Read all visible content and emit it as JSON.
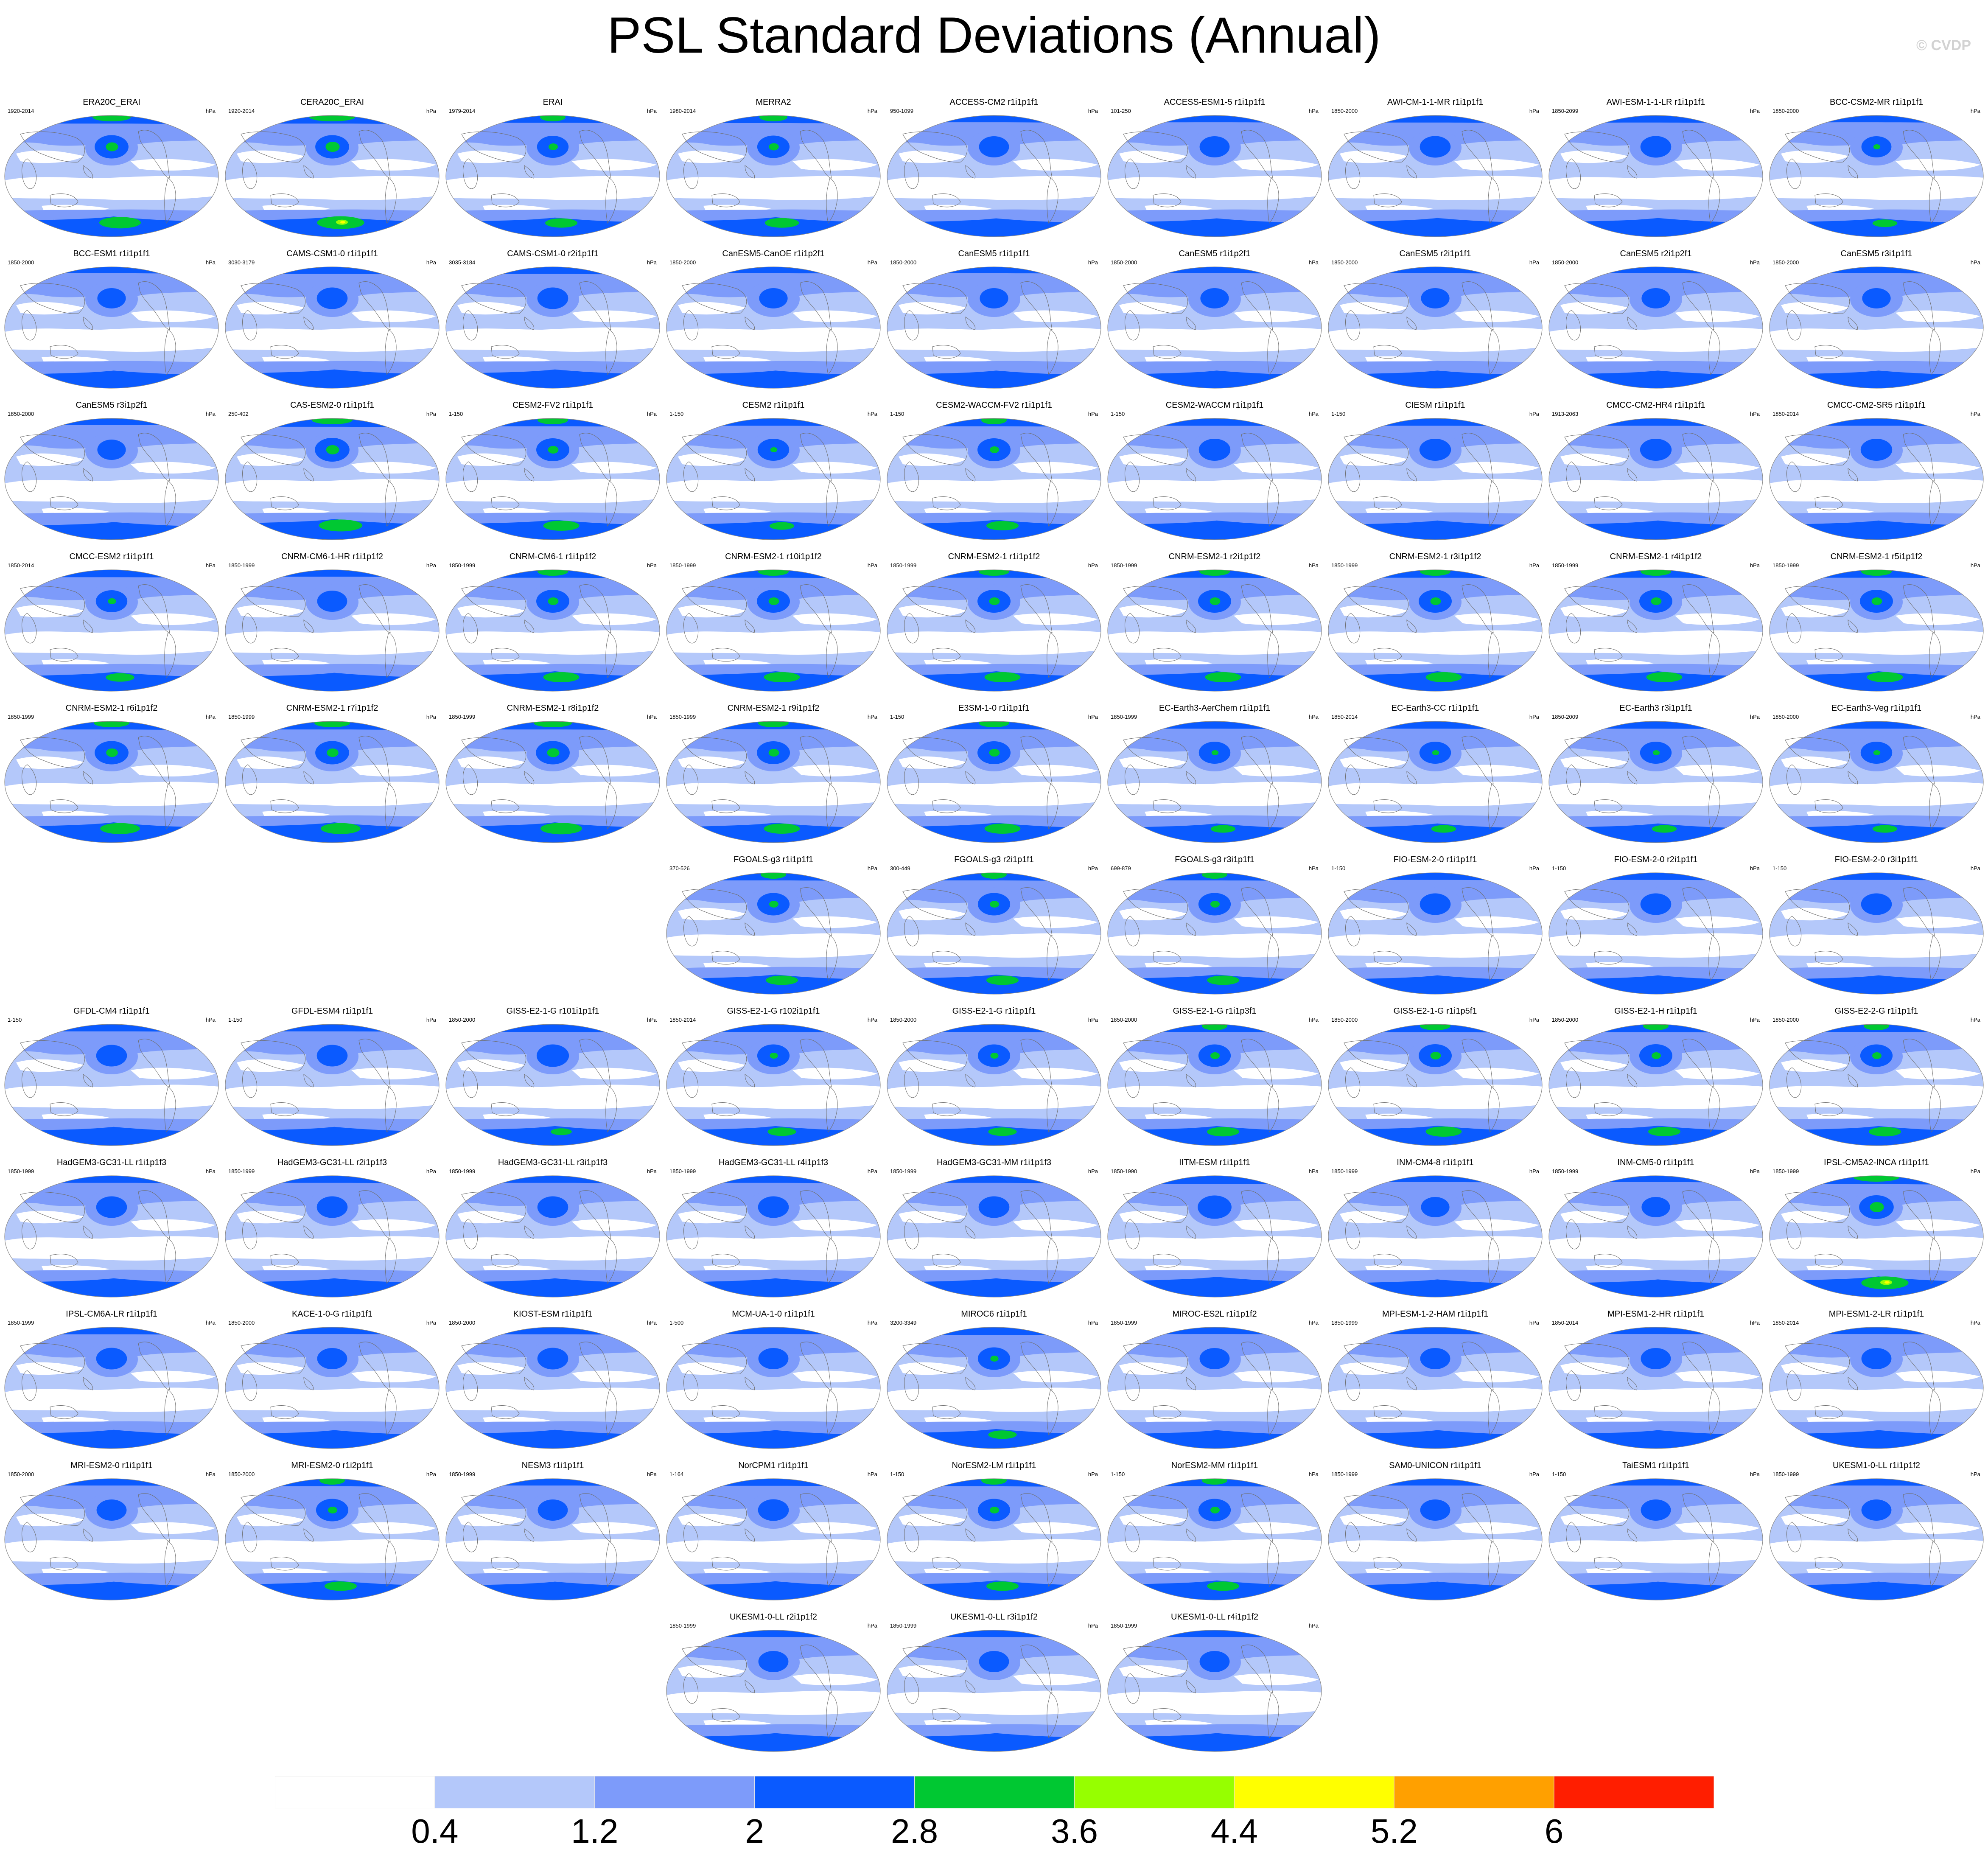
{
  "chart_data": {
    "type": "map-panels",
    "title": "PSL Standard Deviations (Annual)",
    "copyright": "© CVDP",
    "units": "hPa",
    "colorbar": {
      "levels": [
        "0.4",
        "1.2",
        "2",
        "2.8",
        "3.6",
        "4.4",
        "5.2",
        "6"
      ],
      "colors": [
        "#ffffff",
        "#b4c8fa",
        "#7d9bfa",
        "#0a5aff",
        "#00c832",
        "#96ff00",
        "#ffff00",
        "#ffa000",
        "#ff1e00"
      ]
    },
    "panels": [
      {
        "name": "ERA20C_ERAI",
        "years": "1920-2014",
        "row": 0,
        "col": 0,
        "s": 0.55,
        "g": 0.75
      },
      {
        "name": "CERA20C_ERAI",
        "years": "1920-2014",
        "row": 0,
        "col": 1,
        "s": 0.55,
        "g": 0.9
      },
      {
        "name": "ERAI",
        "years": "1979-2014",
        "row": 0,
        "col": 2,
        "s": 0.4,
        "g": 0.5
      },
      {
        "name": "MERRA2",
        "years": "1980-2014",
        "row": 0,
        "col": 3,
        "s": 0.45,
        "g": 0.55
      },
      {
        "name": "ACCESS-CM2 r1i1p1f1",
        "years": "950-1099",
        "row": 0,
        "col": 4,
        "s": 0.3,
        "g": 0
      },
      {
        "name": "ACCESS-ESM1-5 r1i1p1f1",
        "years": "101-250",
        "row": 0,
        "col": 5,
        "s": 0.3,
        "g": 0
      },
      {
        "name": "AWI-CM-1-1-MR r1i1p1f1",
        "years": "1850-2000",
        "row": 0,
        "col": 6,
        "s": 0.35,
        "g": 0
      },
      {
        "name": "AWI-ESM-1-1-LR r1i1p1f1",
        "years": "1850-2099",
        "row": 0,
        "col": 7,
        "s": 0.35,
        "g": 0
      },
      {
        "name": "BCC-CSM2-MR r1i1p1f1",
        "years": "1850-2000",
        "row": 0,
        "col": 8,
        "s": 0.3,
        "g": 0.3
      },
      {
        "name": "BCC-ESM1 r1i1p1f1",
        "years": "1850-2000",
        "row": 1,
        "col": 0,
        "s": 0.2,
        "g": 0
      },
      {
        "name": "CAMS-CSM1-0 r1i1p1f1",
        "years": "3030-3179",
        "row": 1,
        "col": 1,
        "s": 0.35,
        "g": 0
      },
      {
        "name": "CAMS-CSM1-0 r2i1p1f1",
        "years": "3035-3184",
        "row": 1,
        "col": 2,
        "s": 0.35,
        "g": 0
      },
      {
        "name": "CanESM5-CanOE r1i1p2f1",
        "years": "1850-2000",
        "row": 1,
        "col": 3,
        "s": 0.2,
        "g": 0
      },
      {
        "name": "CanESM5 r1i1p1f1",
        "years": "1850-2000",
        "row": 1,
        "col": 4,
        "s": 0.2,
        "g": 0
      },
      {
        "name": "CanESM5 r1i1p2f1",
        "years": "1850-2000",
        "row": 1,
        "col": 5,
        "s": 0.2,
        "g": 0
      },
      {
        "name": "CanESM5 r2i1p1f1",
        "years": "1850-2000",
        "row": 1,
        "col": 6,
        "s": 0.2,
        "g": 0
      },
      {
        "name": "CanESM5 r2i1p2f1",
        "years": "1850-2000",
        "row": 1,
        "col": 7,
        "s": 0.2,
        "g": 0
      },
      {
        "name": "CanESM5 r3i1p1f1",
        "years": "1850-2000",
        "row": 1,
        "col": 8,
        "s": 0.2,
        "g": 0
      },
      {
        "name": "CanESM5 r3i1p2f1",
        "years": "1850-2000",
        "row": 2,
        "col": 0,
        "s": 0.2,
        "g": 0
      },
      {
        "name": "CAS-ESM2-0 r1i1p1f1",
        "years": "250-402",
        "row": 2,
        "col": 1,
        "s": 0.6,
        "g": 0.8
      },
      {
        "name": "CESM2-FV2 r1i1p1f1",
        "years": "1-150",
        "row": 2,
        "col": 2,
        "s": 0.5,
        "g": 0.6
      },
      {
        "name": "CESM2 r1i1p1f1",
        "years": "1-150",
        "row": 2,
        "col": 3,
        "s": 0.4,
        "g": 0.3
      },
      {
        "name": "CESM2-WACCM-FV2 r1i1p1f1",
        "years": "1-150",
        "row": 2,
        "col": 4,
        "s": 0.5,
        "g": 0.5
      },
      {
        "name": "CESM2-WACCM r1i1p1f1",
        "years": "1-150",
        "row": 2,
        "col": 5,
        "s": 0.4,
        "g": 0
      },
      {
        "name": "CIESM r1i1p1f1",
        "years": "1-150",
        "row": 2,
        "col": 6,
        "s": 0.4,
        "g": 0
      },
      {
        "name": "CMCC-CM2-HR4 r1i1p1f1",
        "years": "1913-2063",
        "row": 2,
        "col": 7,
        "s": 0.4,
        "g": 0
      },
      {
        "name": "CMCC-CM2-SR5 r1i1p1f1",
        "years": "1850-2014",
        "row": 2,
        "col": 8,
        "s": 0.4,
        "g": 0
      },
      {
        "name": "CMCC-ESM2 r1i1p1f1",
        "years": "1850-2014",
        "row": 3,
        "col": 0,
        "s": 0.4,
        "g": 0.4
      },
      {
        "name": "CNRM-CM6-1-HR r1i1p1f2",
        "years": "1850-1999",
        "row": 3,
        "col": 1,
        "s": 0.3,
        "g": 0
      },
      {
        "name": "CNRM-CM6-1 r1i1p1f2",
        "years": "1850-1999",
        "row": 3,
        "col": 2,
        "s": 0.5,
        "g": 0.6
      },
      {
        "name": "CNRM-ESM2-1 r10i1p1f2",
        "years": "1850-1999",
        "row": 3,
        "col": 3,
        "s": 0.5,
        "g": 0.6
      },
      {
        "name": "CNRM-ESM2-1 r1i1p1f2",
        "years": "1850-1999",
        "row": 3,
        "col": 4,
        "s": 0.5,
        "g": 0.6
      },
      {
        "name": "CNRM-ESM2-1 r2i1p1f2",
        "years": "1850-1999",
        "row": 3,
        "col": 5,
        "s": 0.5,
        "g": 0.6
      },
      {
        "name": "CNRM-ESM2-1 r3i1p1f2",
        "years": "1850-1999",
        "row": 3,
        "col": 6,
        "s": 0.5,
        "g": 0.6
      },
      {
        "name": "CNRM-ESM2-1 r4i1p1f2",
        "years": "1850-1999",
        "row": 3,
        "col": 7,
        "s": 0.5,
        "g": 0.6
      },
      {
        "name": "CNRM-ESM2-1 r5i1p1f2",
        "years": "1850-1999",
        "row": 3,
        "col": 8,
        "s": 0.5,
        "g": 0.6
      },
      {
        "name": "CNRM-ESM2-1 r6i1p1f2",
        "years": "1850-1999",
        "row": 4,
        "col": 0,
        "s": 0.55,
        "g": 0.7
      },
      {
        "name": "CNRM-ESM2-1 r7i1p1f2",
        "years": "1850-1999",
        "row": 4,
        "col": 1,
        "s": 0.55,
        "g": 0.7
      },
      {
        "name": "CNRM-ESM2-1 r8i1p1f2",
        "years": "1850-1999",
        "row": 4,
        "col": 2,
        "s": 0.55,
        "g": 0.75
      },
      {
        "name": "CNRM-ESM2-1 r9i1p1f2",
        "years": "1850-1999",
        "row": 4,
        "col": 3,
        "s": 0.5,
        "g": 0.6
      },
      {
        "name": "E3SM-1-0 r1i1p1f1",
        "years": "1-150",
        "row": 4,
        "col": 4,
        "s": 0.5,
        "g": 0.6
      },
      {
        "name": "EC-Earth3-AerChem r1i1p1f1",
        "years": "1850-1999",
        "row": 4,
        "col": 5,
        "s": 0.4,
        "g": 0.3
      },
      {
        "name": "EC-Earth3-CC r1i1p1f1",
        "years": "1850-2014",
        "row": 4,
        "col": 6,
        "s": 0.4,
        "g": 0.3
      },
      {
        "name": "EC-Earth3 r3i1p1f1",
        "years": "1850-2009",
        "row": 4,
        "col": 7,
        "s": 0.4,
        "g": 0.3
      },
      {
        "name": "EC-Earth3-Veg r1i1p1f1",
        "years": "1850-2000",
        "row": 4,
        "col": 8,
        "s": 0.4,
        "g": 0.3
      },
      {
        "name": "FGOALS-g3 r1i1p1f1",
        "years": "370-526",
        "row": 5,
        "col": 3,
        "s": 0.45,
        "g": 0.5
      },
      {
        "name": "FGOALS-g3 r2i1p1f1",
        "years": "300-449",
        "row": 5,
        "col": 4,
        "s": 0.45,
        "g": 0.5
      },
      {
        "name": "FGOALS-g3 r3i1p1f1",
        "years": "699-879",
        "row": 5,
        "col": 5,
        "s": 0.45,
        "g": 0.5
      },
      {
        "name": "FIO-ESM-2-0 r1i1p1f1",
        "years": "1-150",
        "row": 5,
        "col": 6,
        "s": 0.35,
        "g": 0
      },
      {
        "name": "FIO-ESM-2-0 r2i1p1f1",
        "years": "1-150",
        "row": 5,
        "col": 7,
        "s": 0.35,
        "g": 0
      },
      {
        "name": "FIO-ESM-2-0 r3i1p1f1",
        "years": "1-150",
        "row": 5,
        "col": 8,
        "s": 0.35,
        "g": 0
      },
      {
        "name": "GFDL-CM4 r1i1p1f1",
        "years": "1-150",
        "row": 6,
        "col": 0,
        "s": 0.35,
        "g": 0
      },
      {
        "name": "GFDL-ESM4 r1i1p1f1",
        "years": "1-150",
        "row": 6,
        "col": 1,
        "s": 0.35,
        "g": 0
      },
      {
        "name": "GISS-E2-1-G r101i1p1f1",
        "years": "1850-2000",
        "row": 6,
        "col": 2,
        "s": 0.45,
        "g": 0.2
      },
      {
        "name": "GISS-E2-1-G r102i1p1f1",
        "years": "1850-2014",
        "row": 6,
        "col": 3,
        "s": 0.45,
        "g": 0.4
      },
      {
        "name": "GISS-E2-1-G r1i1p1f1",
        "years": "1850-2000",
        "row": 6,
        "col": 4,
        "s": 0.45,
        "g": 0.4
      },
      {
        "name": "GISS-E2-1-G r1i1p3f1",
        "years": "1850-2000",
        "row": 6,
        "col": 5,
        "s": 0.45,
        "g": 0.5
      },
      {
        "name": "GISS-E2-1-G r1i1p5f1",
        "years": "1850-2000",
        "row": 6,
        "col": 6,
        "s": 0.5,
        "g": 0.6
      },
      {
        "name": "GISS-E2-1-H r1i1p1f1",
        "years": "1850-2000",
        "row": 6,
        "col": 7,
        "s": 0.5,
        "g": 0.5
      },
      {
        "name": "GISS-E2-2-G r1i1p1f1",
        "years": "1850-2000",
        "row": 6,
        "col": 8,
        "s": 0.45,
        "g": 0.5
      },
      {
        "name": "HadGEM3-GC31-LL r1i1p1f3",
        "years": "1850-1999",
        "row": 7,
        "col": 0,
        "s": 0.35,
        "g": 0
      },
      {
        "name": "HadGEM3-GC31-LL r2i1p1f3",
        "years": "1850-1999",
        "row": 7,
        "col": 1,
        "s": 0.35,
        "g": 0
      },
      {
        "name": "HadGEM3-GC31-LL r3i1p1f3",
        "years": "1850-1999",
        "row": 7,
        "col": 2,
        "s": 0.35,
        "g": 0
      },
      {
        "name": "HadGEM3-GC31-LL r4i1p1f3",
        "years": "1850-1999",
        "row": 7,
        "col": 3,
        "s": 0.35,
        "g": 0
      },
      {
        "name": "HadGEM3-GC31-MM r1i1p1f3",
        "years": "1850-1999",
        "row": 7,
        "col": 4,
        "s": 0.35,
        "g": 0
      },
      {
        "name": "IITM-ESM r1i1p1f1",
        "years": "1850-1990",
        "row": 7,
        "col": 5,
        "s": 0.55,
        "g": 0
      },
      {
        "name": "INM-CM4-8 r1i1p1f1",
        "years": "1850-1999",
        "row": 7,
        "col": 6,
        "s": 0.2,
        "g": 0
      },
      {
        "name": "INM-CM5-0 r1i1p1f1",
        "years": "1850-1999",
        "row": 7,
        "col": 7,
        "s": 0.2,
        "g": 0
      },
      {
        "name": "IPSL-CM5A2-INCA r1i1p1f1",
        "years": "1850-1999",
        "row": 7,
        "col": 8,
        "s": 0.6,
        "g": 0.9
      },
      {
        "name": "IPSL-CM6A-LR r1i1p1f1",
        "years": "1850-1999",
        "row": 8,
        "col": 0,
        "s": 0.35,
        "g": 0
      },
      {
        "name": "KACE-1-0-G r1i1p1f1",
        "years": "1850-2000",
        "row": 8,
        "col": 1,
        "s": 0.3,
        "g": 0
      },
      {
        "name": "KIOST-ESM r1i1p1f1",
        "years": "1850-2000",
        "row": 8,
        "col": 2,
        "s": 0.35,
        "g": 0
      },
      {
        "name": "MCM-UA-1-0 r1i1p1f1",
        "years": "1-500",
        "row": 8,
        "col": 3,
        "s": 0.3,
        "g": 0
      },
      {
        "name": "MIROC6 r1i1p1f1",
        "years": "3200-3349",
        "row": 8,
        "col": 4,
        "s": 0.45,
        "g": 0.4
      },
      {
        "name": "MIROC-ES2L r1i1p1f2",
        "years": "1850-1999",
        "row": 8,
        "col": 5,
        "s": 0.3,
        "g": 0
      },
      {
        "name": "MPI-ESM-1-2-HAM r1i1p1f1",
        "years": "1850-1999",
        "row": 8,
        "col": 6,
        "s": 0.3,
        "g": 0
      },
      {
        "name": "MPI-ESM1-2-HR r1i1p1f1",
        "years": "1850-2014",
        "row": 8,
        "col": 7,
        "s": 0.3,
        "g": 0
      },
      {
        "name": "MPI-ESM1-2-LR r1i1p1f1",
        "years": "1850-2014",
        "row": 8,
        "col": 8,
        "s": 0.3,
        "g": 0
      },
      {
        "name": "MRI-ESM2-0 r1i1p1f1",
        "years": "1850-2000",
        "row": 9,
        "col": 0,
        "s": 0.3,
        "g": 0
      },
      {
        "name": "MRI-ESM2-0 r1i2p1f1",
        "years": "1850-2000",
        "row": 9,
        "col": 1,
        "s": 0.45,
        "g": 0.5
      },
      {
        "name": "NESM3 r1i1p1f1",
        "years": "1850-1999",
        "row": 9,
        "col": 2,
        "s": 0.3,
        "g": 0
      },
      {
        "name": "NorCPM1 r1i1p1f1",
        "years": "1-164",
        "row": 9,
        "col": 3,
        "s": 0.35,
        "g": 0
      },
      {
        "name": "NorESM2-LM r1i1p1f1",
        "years": "1-150",
        "row": 9,
        "col": 4,
        "s": 0.45,
        "g": 0.5
      },
      {
        "name": "NorESM2-MM r1i1p1f1",
        "years": "1-150",
        "row": 9,
        "col": 5,
        "s": 0.45,
        "g": 0.5
      },
      {
        "name": "SAM0-UNICON r1i1p1f1",
        "years": "1850-1999",
        "row": 9,
        "col": 6,
        "s": 0.3,
        "g": 0
      },
      {
        "name": "TaiESM1 r1i1p1f1",
        "years": "1-150",
        "row": 9,
        "col": 7,
        "s": 0.3,
        "g": 0
      },
      {
        "name": "UKESM1-0-LL r1i1p1f2",
        "years": "1850-1999",
        "row": 9,
        "col": 8,
        "s": 0.3,
        "g": 0
      },
      {
        "name": "UKESM1-0-LL r2i1p1f2",
        "years": "1850-1999",
        "row": 10,
        "col": 3,
        "s": 0.3,
        "g": 0
      },
      {
        "name": "UKESM1-0-LL r3i1p1f2",
        "years": "1850-1999",
        "row": 10,
        "col": 4,
        "s": 0.3,
        "g": 0
      },
      {
        "name": "UKESM1-0-LL r4i1p1f2",
        "years": "1850-1999",
        "row": 10,
        "col": 5,
        "s": 0.3,
        "g": 0
      }
    ]
  }
}
